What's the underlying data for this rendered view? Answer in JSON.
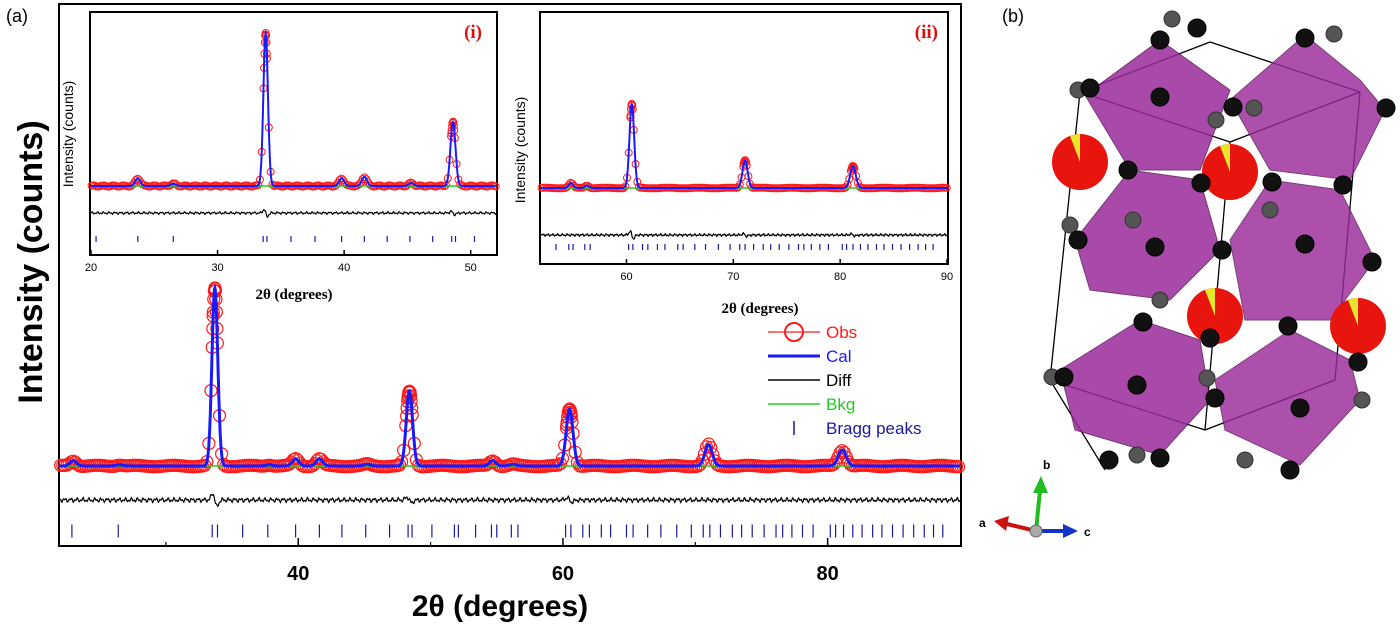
{
  "panel_labels": {
    "a": "(a)",
    "b": "(b)"
  },
  "colors": {
    "obs": "#ff1a1a",
    "cal": "#1a1aff",
    "diff": "#000000",
    "bkg": "#22cc22",
    "bragg": "#1a1aa0",
    "octahedron": "#9b2a9b",
    "a_site": "#e8150f",
    "oxygen": "#111111",
    "axis_a": "#cc1111",
    "axis_b": "#22bb22",
    "axis_c": "#1133cc"
  },
  "chart_data": [
    {
      "id": "main",
      "type": "line",
      "title": "",
      "xlabel": "2θ (degrees)",
      "ylabel": "Intensity (counts)",
      "xlim": [
        22,
        90
      ],
      "ylim": [
        -0.36,
        1.05
      ],
      "xticks": [
        40,
        60,
        80
      ],
      "xticks_minor": [
        30,
        50,
        70
      ],
      "peaks": [
        {
          "x": 23.0,
          "h": 0.03,
          "w": 0.25
        },
        {
          "x": 26.5,
          "h": 0.008,
          "w": 0.25
        },
        {
          "x": 33.7,
          "h": 1.0,
          "w": 0.22
        },
        {
          "x": 37.8,
          "h": 0.008,
          "w": 0.25
        },
        {
          "x": 39.8,
          "h": 0.04,
          "w": 0.25
        },
        {
          "x": 41.6,
          "h": 0.04,
          "w": 0.25
        },
        {
          "x": 45.2,
          "h": 0.01,
          "w": 0.25
        },
        {
          "x": 48.4,
          "h": 0.42,
          "w": 0.24
        },
        {
          "x": 54.7,
          "h": 0.03,
          "w": 0.25
        },
        {
          "x": 56.2,
          "h": 0.01,
          "w": 0.25
        },
        {
          "x": 60.5,
          "h": 0.32,
          "w": 0.26
        },
        {
          "x": 71.0,
          "h": 0.12,
          "w": 0.28
        },
        {
          "x": 81.1,
          "h": 0.09,
          "w": 0.3
        }
      ],
      "diff_baseline": -0.17,
      "bragg_baseline": -0.33,
      "bragg_positions": [
        22.9,
        26.4,
        33.5,
        33.9,
        35.8,
        37.7,
        39.8,
        41.6,
        43.3,
        45.1,
        46.9,
        48.3,
        48.6,
        50.1,
        51.8,
        52.1,
        53.4,
        54.6,
        55.0,
        56.1,
        56.6,
        60.2,
        60.6,
        61.5,
        62.0,
        62.9,
        63.6,
        64.8,
        65.3,
        66.4,
        67.4,
        68.6,
        69.7,
        70.6,
        71.1,
        71.9,
        72.8,
        73.5,
        74.3,
        75.2,
        76.1,
        76.6,
        77.3,
        78.1,
        78.9,
        80.2,
        80.6,
        81.2,
        81.9,
        82.6,
        83.4,
        84.1,
        84.9,
        85.7,
        86.5,
        87.3,
        88.0,
        88.7
      ],
      "legend": [
        {
          "key": "obs",
          "label": "Obs"
        },
        {
          "key": "cal",
          "label": "Cal"
        },
        {
          "key": "diff",
          "label": "Diff"
        },
        {
          "key": "bkg",
          "label": "Bkg"
        },
        {
          "key": "bragg",
          "label": "Bragg peaks"
        }
      ]
    },
    {
      "id": "inset_i",
      "type": "line",
      "label": "(i)",
      "xlabel": "2θ (degrees)",
      "ylabel": "Intensity (counts)",
      "xlim": [
        20,
        52
      ],
      "xticks": [
        20,
        30,
        40,
        50
      ],
      "peaks": [
        {
          "x": 23.7,
          "h": 0.05,
          "w": 0.2
        },
        {
          "x": 26.5,
          "h": 0.015,
          "w": 0.2
        },
        {
          "x": 33.8,
          "h": 1.0,
          "w": 0.18
        },
        {
          "x": 39.8,
          "h": 0.05,
          "w": 0.2
        },
        {
          "x": 41.6,
          "h": 0.06,
          "w": 0.2
        },
        {
          "x": 45.3,
          "h": 0.02,
          "w": 0.2
        },
        {
          "x": 48.6,
          "h": 0.42,
          "w": 0.2
        }
      ],
      "bragg_positions": [
        20.4,
        23.7,
        26.5,
        33.6,
        33.9,
        35.8,
        37.7,
        39.8,
        41.6,
        43.4,
        45.2,
        47.0,
        48.5,
        48.8,
        50.3
      ]
    },
    {
      "id": "inset_ii",
      "type": "line",
      "label": "(ii)",
      "xlabel": "2θ (degrees)",
      "ylabel": "Intensity (counts)",
      "xlim": [
        52,
        90
      ],
      "xticks": [
        60,
        70,
        80,
        90
      ],
      "peaks": [
        {
          "x": 54.8,
          "h": 0.06,
          "w": 0.2
        },
        {
          "x": 56.3,
          "h": 0.03,
          "w": 0.2
        },
        {
          "x": 60.5,
          "h": 1.0,
          "w": 0.22
        },
        {
          "x": 71.1,
          "h": 0.33,
          "w": 0.24
        },
        {
          "x": 81.2,
          "h": 0.26,
          "w": 0.26
        }
      ],
      "bragg_positions": [
        53.4,
        54.6,
        55.0,
        56.1,
        56.6,
        60.2,
        60.6,
        61.5,
        62.0,
        62.9,
        63.6,
        64.8,
        65.3,
        66.4,
        67.4,
        68.6,
        69.7,
        70.6,
        71.1,
        71.9,
        72.8,
        73.5,
        74.3,
        75.2,
        76.1,
        76.6,
        77.3,
        78.1,
        78.9,
        80.2,
        80.6,
        81.2,
        81.9,
        82.6,
        83.4,
        84.1,
        84.9,
        85.7,
        86.5,
        87.3,
        88.0,
        88.7
      ]
    }
  ],
  "structure": {
    "axes_labels": {
      "a": "a",
      "b": "b",
      "c": "c"
    }
  }
}
